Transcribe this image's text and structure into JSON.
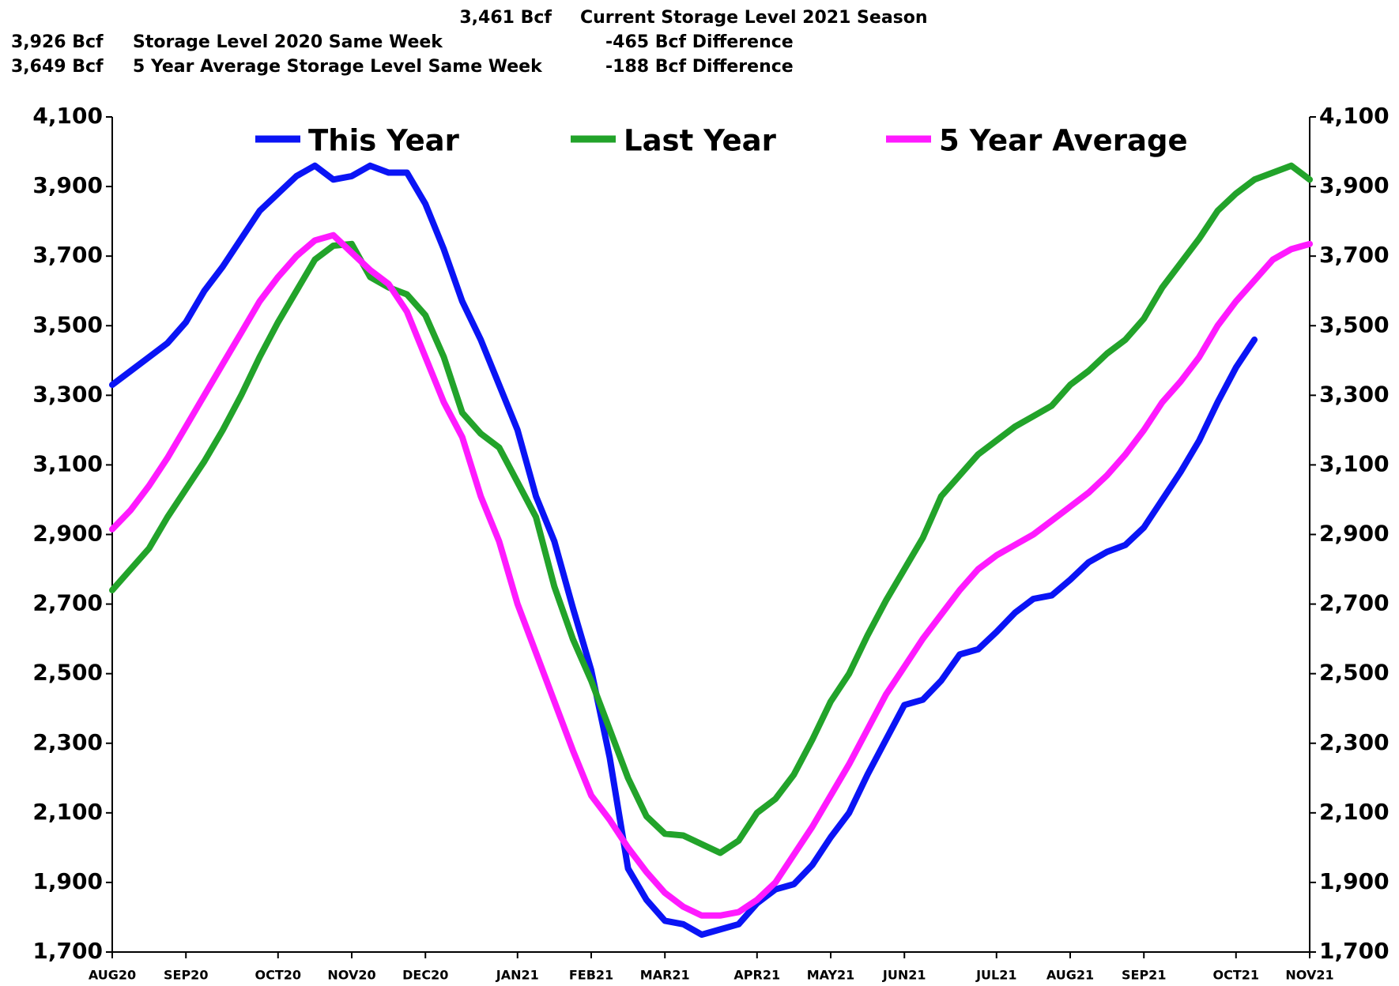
{
  "chart_data": {
    "type": "line",
    "annotations": [
      [
        "3,461 Bcf",
        "Current Storage Level 2021 Season"
      ],
      [
        "3,926 Bcf",
        "Storage Level 2020 Same Week",
        "-465 Bcf Difference"
      ],
      [
        "3,649 Bcf",
        "5 Year Average Storage Level Same Week",
        "-188 Bcf Difference"
      ]
    ],
    "categories": [
      "AUG20",
      null,
      null,
      null,
      "SEP20",
      null,
      null,
      null,
      null,
      "OCT20",
      null,
      null,
      null,
      "NOV20",
      null,
      null,
      null,
      "DEC20",
      null,
      null,
      null,
      null,
      "JAN21",
      null,
      null,
      null,
      "FEB21",
      null,
      null,
      null,
      "MAR21",
      null,
      null,
      null,
      null,
      "APR21",
      null,
      null,
      null,
      "MAY21",
      null,
      null,
      null,
      "JUN21",
      null,
      null,
      null,
      null,
      "JUL21",
      null,
      null,
      null,
      "AUG21",
      null,
      null,
      null,
      "SEP21",
      null,
      null,
      null,
      null,
      "OCT21",
      null,
      null,
      null,
      "NOV21"
    ],
    "series": [
      {
        "name": "This Year",
        "color": "#0a14f5",
        "values": [
          3330,
          3370,
          3410,
          3450,
          3510,
          3600,
          3670,
          3750,
          3830,
          3880,
          3930,
          3960,
          3920,
          3930,
          3960,
          3940,
          3940,
          3850,
          3720,
          3570,
          3460,
          3330,
          3200,
          3010,
          2880,
          2690,
          2510,
          2260,
          1940,
          1850,
          1790,
          1780,
          1750,
          1765,
          1780,
          1840,
          1880,
          1895,
          1950,
          2030,
          2100,
          2210,
          2310,
          2410,
          2425,
          2480,
          2555,
          2570,
          2620,
          2675,
          2715,
          2725,
          2770,
          2820,
          2850,
          2870,
          2920,
          3000,
          3080,
          3170,
          3280,
          3380,
          3460,
          null,
          null,
          null
        ]
      },
      {
        "name": "Last Year",
        "color": "#22a32a",
        "values": [
          2740,
          2800,
          2860,
          2950,
          3030,
          3110,
          3200,
          3300,
          3410,
          3510,
          3600,
          3690,
          3730,
          3735,
          3640,
          3610,
          3590,
          3530,
          3410,
          3250,
          3190,
          3150,
          3050,
          2950,
          2750,
          2600,
          2480,
          2340,
          2200,
          2090,
          2040,
          2035,
          2010,
          1985,
          2020,
          2100,
          2140,
          2210,
          2310,
          2420,
          2500,
          2610,
          2710,
          2800,
          2890,
          3010,
          3070,
          3130,
          3170,
          3210,
          3240,
          3270,
          3330,
          3370,
          3420,
          3460,
          3520,
          3610,
          3680,
          3750,
          3830,
          3880,
          3920,
          3940,
          3960,
          3920
        ]
      },
      {
        "name": "5 Year Average",
        "color": "#ff1aff",
        "values": [
          2915,
          2970,
          3040,
          3120,
          3210,
          3300,
          3390,
          3480,
          3570,
          3640,
          3700,
          3745,
          3760,
          3710,
          3660,
          3620,
          3540,
          3410,
          3280,
          3180,
          3010,
          2880,
          2700,
          2560,
          2420,
          2280,
          2150,
          2080,
          2000,
          1930,
          1870,
          1830,
          1805,
          1805,
          1815,
          1850,
          1900,
          1980,
          2060,
          2150,
          2240,
          2340,
          2440,
          2520,
          2600,
          2670,
          2740,
          2800,
          2840,
          2870,
          2900,
          2940,
          2980,
          3020,
          3070,
          3130,
          3200,
          3280,
          3340,
          3410,
          3500,
          3570,
          3630,
          3690,
          3720,
          3735
        ]
      }
    ],
    "ylim": [
      1700,
      4100
    ],
    "yticks": [
      {
        "value": 1700,
        "label": "1,700"
      },
      {
        "value": 1900,
        "label": "1,900"
      },
      {
        "value": 2100,
        "label": "2,100"
      },
      {
        "value": 2300,
        "label": "2,300"
      },
      {
        "value": 2500,
        "label": "2,500"
      },
      {
        "value": 2700,
        "label": "2,700"
      },
      {
        "value": 2900,
        "label": "2,900"
      },
      {
        "value": 3100,
        "label": "3,100"
      },
      {
        "value": 3300,
        "label": "3,300"
      },
      {
        "value": 3500,
        "label": "3,500"
      },
      {
        "value": 3700,
        "label": "3,700"
      },
      {
        "value": 3900,
        "label": "3,900"
      },
      {
        "value": 4100,
        "label": "4,100"
      }
    ],
    "y2lim": [
      1700,
      4100
    ],
    "y2ticks": [
      {
        "value": 1700,
        "label": "1,700"
      },
      {
        "value": 1900,
        "label": "1,900"
      },
      {
        "value": 2100,
        "label": "2,100"
      },
      {
        "value": 2300,
        "label": "2,300"
      },
      {
        "value": 2500,
        "label": "2,500"
      },
      {
        "value": 2700,
        "label": "2,700"
      },
      {
        "value": 2900,
        "label": "2,900"
      },
      {
        "value": 3100,
        "label": "3,100"
      },
      {
        "value": 3300,
        "label": "3,300"
      },
      {
        "value": 3500,
        "label": "3,500"
      },
      {
        "value": 3700,
        "label": "3,700"
      },
      {
        "value": 3900,
        "label": "3,900"
      },
      {
        "value": 4100,
        "label": "4,100"
      }
    ],
    "legend": "top",
    "grid": false
  }
}
